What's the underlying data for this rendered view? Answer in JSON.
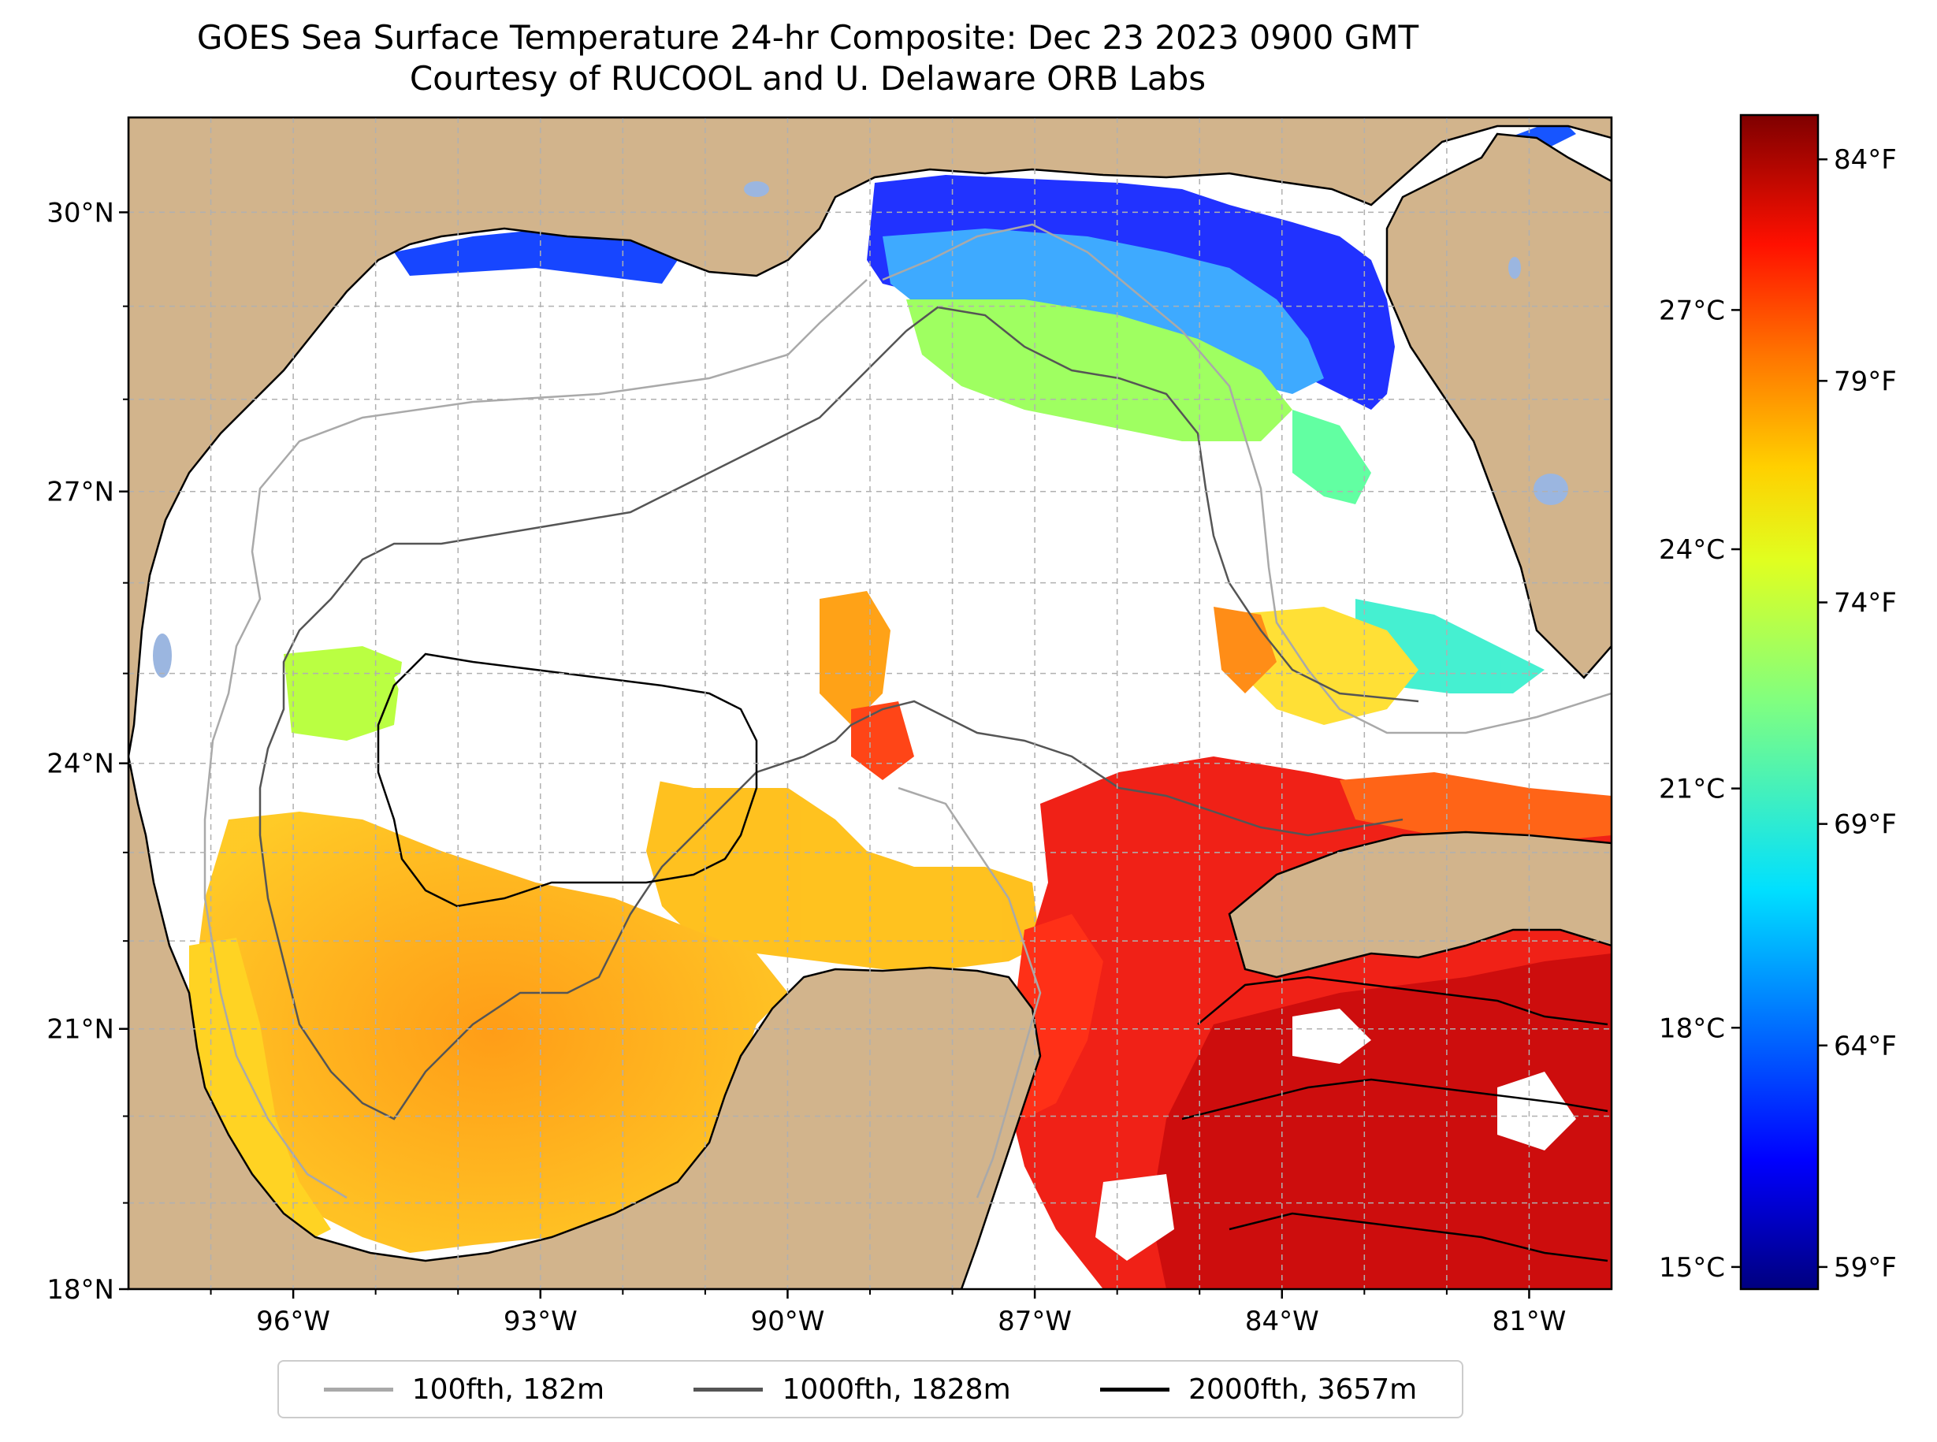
{
  "title": {
    "line1": "GOES Sea Surface Temperature 24-hr Composite: Dec 23 2023 0900 GMT",
    "line2": "Courtesy of RUCOOL and U. Delaware ORB Labs"
  },
  "map": {
    "lon_range": [
      -98,
      -80
    ],
    "lat_range": [
      18,
      31
    ],
    "lat_ticks": [
      "18°N",
      "21°N",
      "24°N",
      "27°N",
      "30°N"
    ],
    "lon_ticks": [
      "96°W",
      "93°W",
      "90°W",
      "87°W",
      "84°W",
      "81°W"
    ],
    "colors": {
      "land": "#d2b48c",
      "lakes": "#9bb6e0",
      "no_data": "#ffffff",
      "grid": "#b0b0b0"
    }
  },
  "colorbar": {
    "celsius_ticks": [
      "15°C",
      "18°C",
      "21°C",
      "24°C",
      "27°C"
    ],
    "fahrenheit_ticks": [
      "59°F",
      "64°F",
      "69°F",
      "74°F",
      "79°F",
      "84°F"
    ],
    "colormap": "jet",
    "range_f": [
      58.5,
      85
    ]
  },
  "legend": {
    "items": [
      {
        "label": "100fth, 182m",
        "color": "#a9a9a9"
      },
      {
        "label": "1000fth, 1828m",
        "color": "#555555"
      },
      {
        "label": "2000fth, 3657m",
        "color": "#000000"
      }
    ]
  }
}
